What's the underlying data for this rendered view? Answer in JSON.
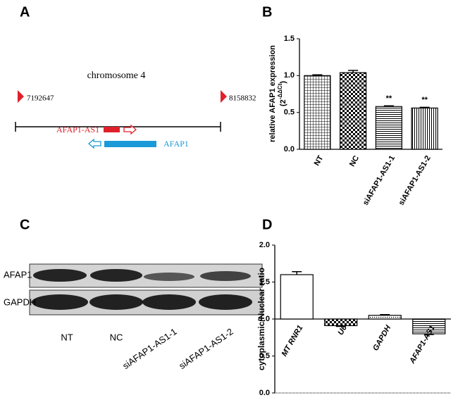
{
  "panel_labels": [
    "A",
    "B",
    "C",
    "D"
  ],
  "diagram": {
    "title": "chromosome 4",
    "start": "7192647",
    "end": "8158832",
    "gene_as": "AFAP1-AS1",
    "gene": "AFAP1"
  },
  "blot": {
    "rows": [
      "AFAP1",
      "GAPDH"
    ],
    "lanes": [
      "NT",
      "NC",
      "siAFAP1-AS1-1",
      "siAFAP1-AS1-2"
    ]
  },
  "chart_data": [
    {
      "type": "bar",
      "ylabel": "relative AFAP1 expression",
      "ylabel_base": "(2",
      "ylabel_exponent": "-ΔΔCt",
      "ylabel_close": ")",
      "categories": [
        "NT",
        "NC",
        "siAFAP1-AS1-1",
        "siAFAP1-AS1-2"
      ],
      "values": [
        1.0,
        1.04,
        0.58,
        0.56
      ],
      "errors": [
        0.01,
        0.03,
        0.01,
        0.01
      ],
      "significance": [
        null,
        null,
        "**",
        "**"
      ],
      "patterns": [
        "grid",
        "check",
        "hlines",
        "vlines"
      ],
      "ylim": [
        0,
        1.5
      ],
      "yticks": [
        {
          "value": 0,
          "label": "0.0"
        },
        0.5,
        {
          "value": 1,
          "label": "1.0"
        },
        1.5
      ]
    },
    {
      "type": "bar",
      "ylabel": "cytoplasmic/Nuclear ratio",
      "categories": [
        "MT RNR1",
        "U6",
        "GAPDH",
        "AFAP1-AS1"
      ],
      "values": [
        1.6,
        0.91,
        1.05,
        0.8
      ],
      "errors": [
        0.04,
        0.01,
        0.01,
        0.01
      ],
      "patterns": [
        "white",
        "check",
        "dots",
        "hlines"
      ],
      "bar_base": 1,
      "italic_categories": true,
      "ylim": [
        0,
        2
      ],
      "yticks": [
        {
          "value": 0,
          "label": "0.0"
        },
        0.5,
        {
          "value": 1,
          "label": "1.0"
        },
        1.5,
        {
          "value": 2,
          "label": "2.0"
        }
      ]
    }
  ]
}
